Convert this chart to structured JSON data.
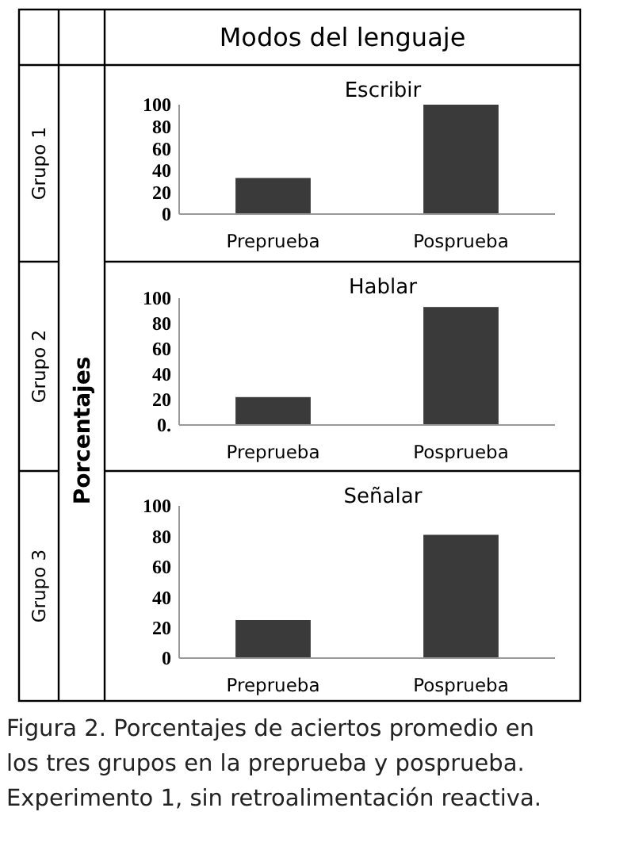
{
  "chart_data": [
    {
      "type": "bar",
      "title": "Escribir",
      "categories": [
        "Preprueba",
        "Posprueba"
      ],
      "values": [
        33,
        100
      ],
      "color": "#3a3a3a",
      "ylim": [
        0,
        100
      ],
      "yticks": [
        0,
        20,
        40,
        60,
        80,
        100
      ],
      "grid": false,
      "annotations": [
        "Grupo 1",
        "Modos del lenguaje"
      ]
    },
    {
      "type": "bar",
      "title": "Hablar",
      "ylabel": "Porcentajes",
      "categories": [
        "Preprueba",
        "Posprueba"
      ],
      "values": [
        22,
        93
      ],
      "color": "#3a3a3a",
      "ylim": [
        0,
        100
      ],
      "yticks": [
        {
          "value": 0,
          "label": "0."
        },
        20,
        40,
        60,
        80,
        100
      ],
      "grid": false,
      "annotations": [
        "Grupo 2"
      ]
    },
    {
      "type": "bar",
      "title": "Señalar",
      "categories": [
        "Preprueba",
        "Posprueba"
      ],
      "values": [
        25,
        81
      ],
      "color": "#3a3a3a",
      "ylim": [
        0,
        100
      ],
      "yticks": [
        0,
        20,
        40,
        60,
        80,
        100
      ],
      "grid": false,
      "annotations": [
        "Grupo 3",
        "Figura 2. Porcentajes de aciertos promedio en los tres grupos en la preprueba y posprueba. Experimento 1, sin retroalimentación reactiva."
      ]
    }
  ]
}
